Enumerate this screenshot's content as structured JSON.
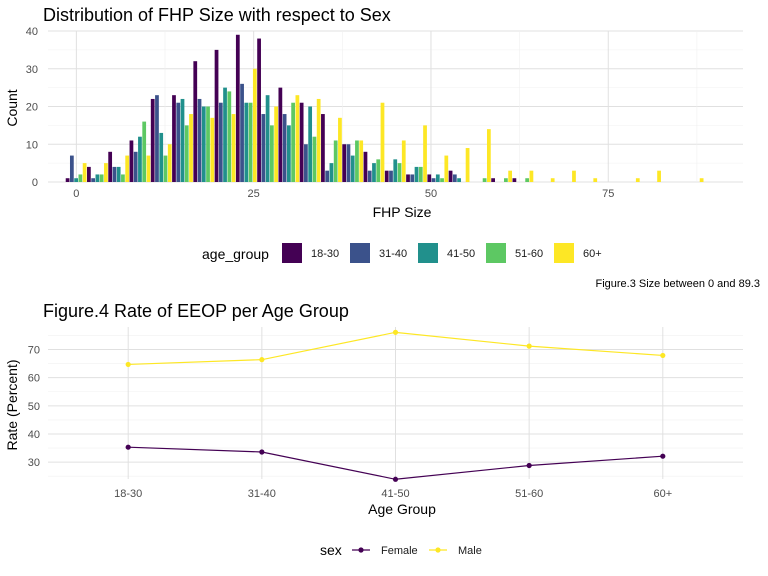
{
  "chart_data": [
    {
      "type": "bar",
      "title": "Distribution of FHP Size with respect to Sex",
      "xlabel": "FHP Size",
      "ylabel": "Count",
      "xlim": [
        -4,
        94
      ],
      "ylim": [
        0,
        40
      ],
      "x_ticks": [
        0,
        25,
        50,
        75
      ],
      "y_ticks": [
        0,
        10,
        20,
        30,
        40
      ],
      "bin_centers": [
        0,
        3,
        6,
        9,
        12,
        15,
        18,
        21,
        24,
        27,
        30,
        33,
        36,
        39,
        42,
        45,
        48,
        51,
        54,
        57,
        60,
        63,
        66,
        69,
        72,
        75,
        78,
        81,
        84,
        87,
        90
      ],
      "legend_title": "age_group",
      "legend_position": "bottom",
      "caption": "Figure.3 Size between 0 and 89.3",
      "series": [
        {
          "name": "18-30",
          "color": "#440154",
          "values": [
            1,
            4,
            8,
            11,
            22,
            23,
            32,
            35,
            39,
            38,
            25,
            21,
            18,
            10,
            8,
            3,
            2,
            2,
            3,
            0,
            1,
            1,
            0,
            0,
            0,
            0,
            0,
            0,
            0,
            0,
            0
          ]
        },
        {
          "name": "31-40",
          "color": "#3B528B",
          "values": [
            7,
            1,
            4,
            8,
            23,
            21,
            22,
            21,
            26,
            18,
            18,
            10,
            3,
            10,
            3,
            3,
            2,
            1,
            2,
            0,
            0,
            0,
            0,
            0,
            0,
            0,
            0,
            0,
            0,
            0,
            0
          ]
        },
        {
          "name": "41-50",
          "color": "#21908C",
          "values": [
            1,
            2,
            4,
            12,
            13,
            22,
            20,
            25,
            21,
            23,
            15,
            20,
            5,
            7,
            5,
            6,
            4,
            2,
            1,
            0,
            0,
            0,
            0,
            0,
            0,
            0,
            0,
            0,
            0,
            0,
            0
          ]
        },
        {
          "name": "51-60",
          "color": "#5DC863",
          "values": [
            2,
            2,
            2,
            16,
            7,
            15,
            20,
            24,
            21,
            15,
            21,
            12,
            11,
            11,
            6,
            5,
            4,
            1,
            0,
            1,
            1,
            1,
            0,
            0,
            0,
            0,
            0,
            0,
            0,
            0,
            0
          ]
        },
        {
          "name": "60+",
          "color": "#FDE725",
          "values": [
            5,
            5,
            7,
            7,
            10,
            18,
            17,
            18,
            30,
            20,
            23,
            22,
            17,
            11,
            21,
            11,
            15,
            7,
            9,
            14,
            3,
            3,
            1,
            3,
            1,
            0,
            1,
            3,
            0,
            1,
            0
          ]
        }
      ]
    },
    {
      "type": "line",
      "title": "Figure.4 Rate of EEOP per Age Group",
      "xlabel": "Age Group",
      "ylabel": "Rate (Percent)",
      "categories": [
        "18-30",
        "31-40",
        "41-50",
        "51-60",
        "60+"
      ],
      "ylim": [
        24,
        78
      ],
      "y_ticks": [
        30,
        40,
        50,
        60,
        70
      ],
      "legend_title": "sex",
      "legend_position": "bottom",
      "series": [
        {
          "name": "Female",
          "color": "#440154",
          "values": [
            35.3,
            33.6,
            23.9,
            28.8,
            32.1
          ]
        },
        {
          "name": "Male",
          "color": "#FDE725",
          "values": [
            64.7,
            66.4,
            76.1,
            71.2,
            67.9
          ]
        }
      ]
    }
  ]
}
